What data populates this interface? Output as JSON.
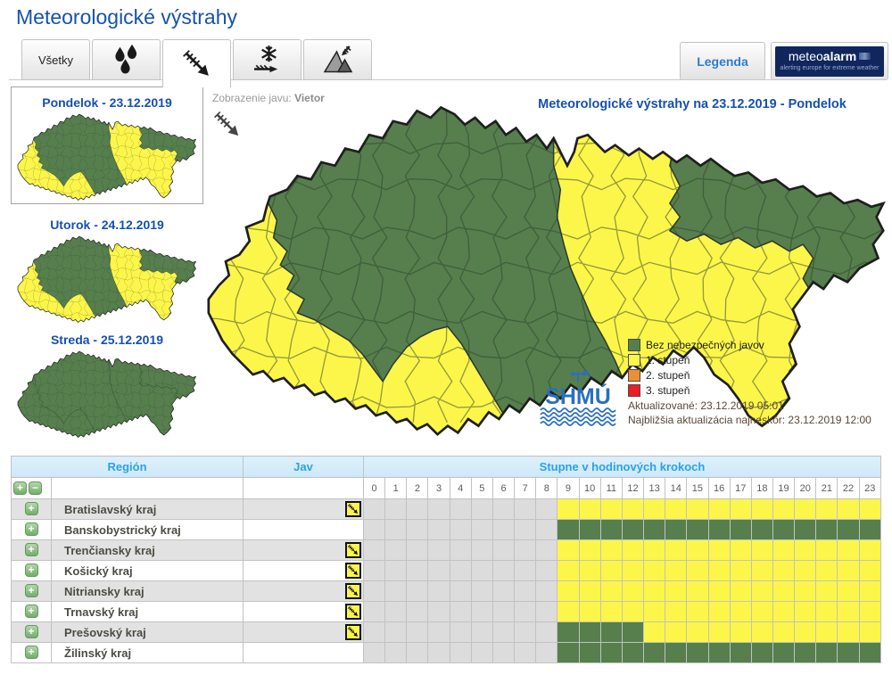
{
  "header": {
    "title": "Meteorologické výstrahy",
    "legend_button": "Legenda",
    "meteoalarm": {
      "brand_light": "meteo",
      "brand_bold": "alarm",
      "tagline": "alerting europe for extreme weather"
    }
  },
  "tabs": [
    {
      "id": "all",
      "label": "Všetky",
      "icon": null,
      "active": false
    },
    {
      "id": "rain",
      "label": null,
      "icon": "rain-icon",
      "active": false
    },
    {
      "id": "wind",
      "label": null,
      "icon": "wind-icon",
      "active": true
    },
    {
      "id": "snowdrift",
      "label": null,
      "icon": "snowdrift-icon",
      "active": false
    },
    {
      "id": "avalanche",
      "label": null,
      "icon": "avalanche-icon",
      "active": false
    }
  ],
  "day_maps": [
    {
      "title": "Pondelok - 23.12.2019",
      "selected": true,
      "has_warnings": true
    },
    {
      "title": "Utorok - 24.12.2019",
      "selected": false,
      "has_warnings": true
    },
    {
      "title": "Streda - 25.12.2019",
      "selected": false,
      "has_warnings": false
    }
  ],
  "map_panel": {
    "phenomenon_label": "Zobrazenie javu:",
    "phenomenon_value": "Vietor",
    "map_title": "Meteorologické výstrahy na 23.12.2019 - Pondelok",
    "legend": [
      {
        "label": "Bez nebezpečných javov",
        "color": "#567f4d"
      },
      {
        "label": "1. stupeň",
        "color": "#fdf64a"
      },
      {
        "label": "2. stupeň",
        "color": "#ef8f33"
      },
      {
        "label": "3. stupeň",
        "color": "#ee1c24"
      }
    ],
    "shmu_logo_text": "SHMÚ",
    "updated": "Aktualizované: 23.12.2019 05:01",
    "next_update": "Najbližšia aktualizácia najneskôr: 23.12.2019 12:00"
  },
  "warning_table": {
    "region_header": "Región",
    "jav_header": "Jav",
    "steps_header": "Stupne v hodinových krokoch",
    "hours": [
      "0",
      "1",
      "2",
      "3",
      "4",
      "5",
      "6",
      "7",
      "8",
      "9",
      "10",
      "11",
      "12",
      "13",
      "14",
      "15",
      "16",
      "17",
      "18",
      "19",
      "20",
      "21",
      "22",
      "23"
    ],
    "level_colors": {
      "none": "#dcdcdc",
      "ok": "#567f4d",
      "1": "#fdf64a",
      "2": "#ef8f33",
      "3": "#ee1c24"
    },
    "rows": [
      {
        "region": "Bratislavský kraj",
        "wind_warning": true,
        "segments": [
          {
            "from": 0,
            "to": 8,
            "level": "none"
          },
          {
            "from": 9,
            "to": 23,
            "level": "1"
          }
        ]
      },
      {
        "region": "Banskobystrický kraj",
        "wind_warning": false,
        "segments": [
          {
            "from": 0,
            "to": 8,
            "level": "none"
          },
          {
            "from": 9,
            "to": 23,
            "level": "ok"
          }
        ]
      },
      {
        "region": "Trenčiansky kraj",
        "wind_warning": true,
        "segments": [
          {
            "from": 0,
            "to": 8,
            "level": "none"
          },
          {
            "from": 9,
            "to": 23,
            "level": "1"
          }
        ]
      },
      {
        "region": "Košický kraj",
        "wind_warning": true,
        "segments": [
          {
            "from": 0,
            "to": 8,
            "level": "none"
          },
          {
            "from": 9,
            "to": 23,
            "level": "1"
          }
        ]
      },
      {
        "region": "Nitriansky kraj",
        "wind_warning": true,
        "segments": [
          {
            "from": 0,
            "to": 8,
            "level": "none"
          },
          {
            "from": 9,
            "to": 23,
            "level": "1"
          }
        ]
      },
      {
        "region": "Trnavský kraj",
        "wind_warning": true,
        "segments": [
          {
            "from": 0,
            "to": 8,
            "level": "none"
          },
          {
            "from": 9,
            "to": 23,
            "level": "1"
          }
        ]
      },
      {
        "region": "Prešovský kraj",
        "wind_warning": true,
        "segments": [
          {
            "from": 0,
            "to": 8,
            "level": "none"
          },
          {
            "from": 9,
            "to": 12,
            "level": "ok"
          },
          {
            "from": 13,
            "to": 23,
            "level": "1"
          }
        ]
      },
      {
        "region": "Žilinský kraj",
        "wind_warning": false,
        "segments": [
          {
            "from": 0,
            "to": 8,
            "level": "none"
          },
          {
            "from": 9,
            "to": 23,
            "level": "ok"
          }
        ]
      }
    ]
  }
}
